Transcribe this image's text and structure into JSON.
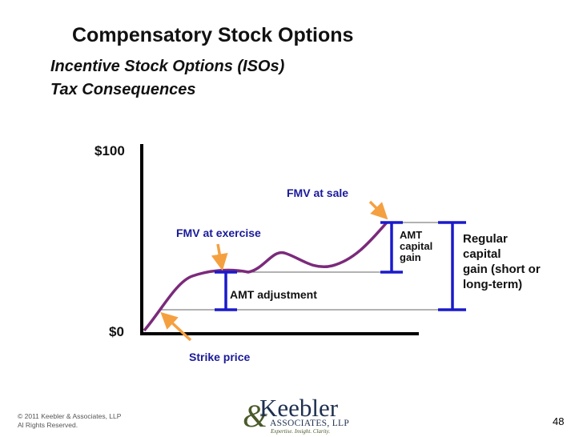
{
  "slide": {
    "title": "Compensatory Stock Options",
    "subtitle_line1": "Incentive Stock Options (ISOs)",
    "subtitle_line2": "Tax Consequences",
    "page_number": "48"
  },
  "diagram": {
    "y_top_label": "$100",
    "y_bottom_label": "$0",
    "labels": {
      "strike_price": "Strike price",
      "fmv_exercise": "FMV at exercise",
      "fmv_sale": "FMV at sale",
      "amt_adjustment": "AMT adjustment",
      "amt_gain_1": "AMT",
      "amt_gain_2": "capital",
      "amt_gain_3": "gain",
      "regular_1": "Regular",
      "regular_2": "capital",
      "regular_3": "gain (short or",
      "regular_4": "long-term)"
    },
    "colors": {
      "curve": "#7b2a7b",
      "bracket": "#1a1acc",
      "arrow": "#f5a040",
      "axis": "#000000"
    }
  },
  "footer": {
    "copyright_line1": "© 2011 Keebler & Associates, LLP",
    "copyright_line2": "Al Rights Reserved."
  },
  "logo": {
    "amp": "&",
    "name": "Keebler",
    "associates": "ASSOCIATES, LLP",
    "tagline": "Expertise. Insight. Clarity."
  }
}
